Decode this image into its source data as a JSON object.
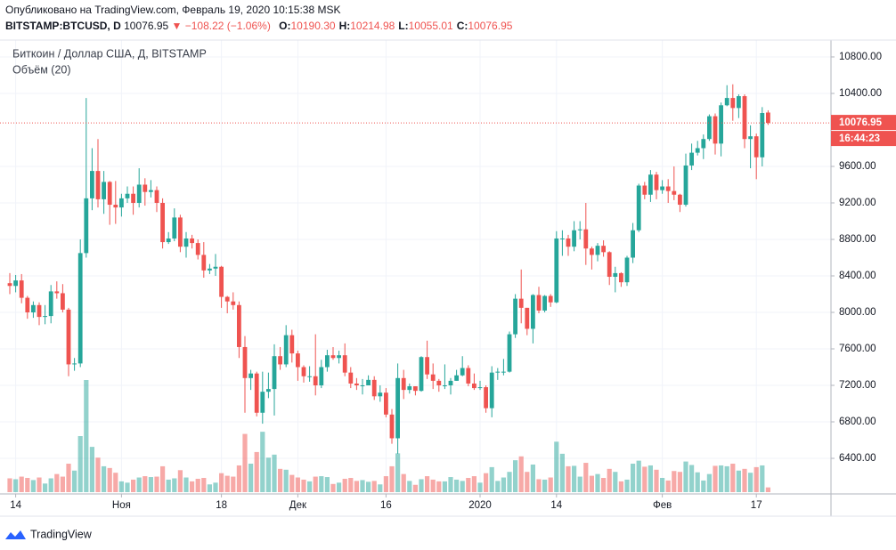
{
  "chart_data": {
    "type": "candlestick",
    "published": "Опубликовано на TradingView.com, Февраль 19, 2020 10:15:38 MSK",
    "symbol": "BITSTAMP:BTCUSD, D",
    "change": "▼ −108.22 (−1.06%)",
    "ohlc": [
      {
        "key": "O:",
        "text": "10190.30"
      },
      {
        "key": "H:",
        "text": "10214.98"
      },
      {
        "key": "L:",
        "text": "10055.01"
      },
      {
        "key": "C:",
        "text": "10076.95"
      }
    ],
    "title": "Биткоин / Доллар США, Д, BITSTAMP",
    "volume_label": "Объём (20)",
    "countdown": "16:44:23",
    "brand": "TradingView",
    "up_color": "#26a69a",
    "down_color": "#ef5350",
    "ylim": [
      6010,
      10985
    ],
    "yticks": [
      {
        "value": 6400,
        "label": "6400.00"
      },
      {
        "value": 6800,
        "label": "6800.00"
      },
      {
        "value": 7200,
        "label": "7200.00"
      },
      {
        "value": 7600,
        "label": "7600.00"
      },
      {
        "value": 8000,
        "label": "8000.00"
      },
      {
        "value": 8400,
        "label": "8400.00"
      },
      {
        "value": 8800,
        "label": "8800.00"
      },
      {
        "value": 9200,
        "label": "9200.00"
      },
      {
        "value": 9600,
        "label": "9600.00"
      },
      {
        "value": 10400,
        "label": "10400.00"
      },
      {
        "value": 10800,
        "label": "10800.00"
      }
    ],
    "xticks": [
      {
        "value": "2019-10-14",
        "label": "14"
      },
      {
        "value": "2019-11-01",
        "label": "Ноя"
      },
      {
        "value": "2019-11-18",
        "label": "18"
      },
      {
        "value": "2019-12-01",
        "label": "Дек"
      },
      {
        "value": "2019-12-16",
        "label": "16"
      },
      {
        "value": "2020-01-01",
        "label": "2020"
      },
      {
        "value": "2020-01-14",
        "label": "14"
      },
      {
        "value": "2020-02-01",
        "label": "Фев"
      },
      {
        "value": "2020-02-17",
        "label": "17"
      }
    ],
    "grid": true,
    "x": [
      "2019-10-13",
      "2019-10-14",
      "2019-10-15",
      "2019-10-16",
      "2019-10-17",
      "2019-10-18",
      "2019-10-19",
      "2019-10-20",
      "2019-10-21",
      "2019-10-22",
      "2019-10-23",
      "2019-10-24",
      "2019-10-25",
      "2019-10-26",
      "2019-10-27",
      "2019-10-28",
      "2019-10-29",
      "2019-10-30",
      "2019-10-31",
      "2019-11-01",
      "2019-11-02",
      "2019-11-03",
      "2019-11-04",
      "2019-11-05",
      "2019-11-06",
      "2019-11-07",
      "2019-11-08",
      "2019-11-09",
      "2019-11-10",
      "2019-11-11",
      "2019-11-12",
      "2019-11-13",
      "2019-11-14",
      "2019-11-15",
      "2019-11-16",
      "2019-11-17",
      "2019-11-18",
      "2019-11-19",
      "2019-11-20",
      "2019-11-21",
      "2019-11-22",
      "2019-11-23",
      "2019-11-24",
      "2019-11-25",
      "2019-11-26",
      "2019-11-27",
      "2019-11-28",
      "2019-11-29",
      "2019-11-30",
      "2019-12-01",
      "2019-12-02",
      "2019-12-03",
      "2019-12-04",
      "2019-12-05",
      "2019-12-06",
      "2019-12-07",
      "2019-12-08",
      "2019-12-09",
      "2019-12-10",
      "2019-12-11",
      "2019-12-12",
      "2019-12-13",
      "2019-12-14",
      "2019-12-15",
      "2019-12-16",
      "2019-12-17",
      "2019-12-18",
      "2019-12-19",
      "2019-12-20",
      "2019-12-21",
      "2019-12-22",
      "2019-12-23",
      "2019-12-24",
      "2019-12-25",
      "2019-12-26",
      "2019-12-27",
      "2019-12-28",
      "2019-12-29",
      "2019-12-30",
      "2019-12-31",
      "2020-01-01",
      "2020-01-02",
      "2020-01-03",
      "2020-01-04",
      "2020-01-05",
      "2020-01-06",
      "2020-01-07",
      "2020-01-08",
      "2020-01-09",
      "2020-01-10",
      "2020-01-11",
      "2020-01-12",
      "2020-01-13",
      "2020-01-14",
      "2020-01-15",
      "2020-01-16",
      "2020-01-17",
      "2020-01-18",
      "2020-01-19",
      "2020-01-20",
      "2020-01-21",
      "2020-01-22",
      "2020-01-23",
      "2020-01-24",
      "2020-01-25",
      "2020-01-26",
      "2020-01-27",
      "2020-01-28",
      "2020-01-29",
      "2020-01-30",
      "2020-01-31",
      "2020-02-01",
      "2020-02-02",
      "2020-02-03",
      "2020-02-04",
      "2020-02-05",
      "2020-02-06",
      "2020-02-07",
      "2020-02-08",
      "2020-02-09",
      "2020-02-10",
      "2020-02-11",
      "2020-02-12",
      "2020-02-13",
      "2020-02-14",
      "2020-02-15",
      "2020-02-16",
      "2020-02-17",
      "2020-02-18",
      "2020-02-19"
    ],
    "open": [
      8320,
      8290,
      8350,
      8160,
      8000,
      8080,
      7950,
      7960,
      8230,
      8210,
      8030,
      7430,
      7440,
      8650,
      9250,
      9550,
      9240,
      9430,
      9180,
      9150,
      9250,
      9300,
      9200,
      9400,
      9320,
      9340,
      9200,
      8770,
      8810,
      9040,
      8720,
      8810,
      8760,
      8630,
      8460,
      8480,
      8500,
      8170,
      8120,
      8080,
      7620,
      7280,
      7330,
      6900,
      7130,
      7160,
      7520,
      7430,
      7750,
      7550,
      7400,
      7300,
      7300,
      7200,
      7400,
      7530,
      7500,
      7530,
      7340,
      7220,
      7200,
      7200,
      7260,
      7080,
      7120,
      6880,
      6620,
      7280,
      7150,
      7190,
      7140,
      7510,
      7320,
      7250,
      7200,
      7200,
      7250,
      7310,
      7390,
      7220,
      7170,
      7180,
      6950,
      7340,
      7350,
      7350,
      7760,
      8150,
      8050,
      7820,
      8190,
      8020,
      8180,
      8110,
      8810,
      8810,
      8720,
      8900,
      8910,
      8700,
      8630,
      8730,
      8660,
      8390,
      8430,
      8330,
      8600,
      8900,
      9390,
      9290,
      9510,
      9340,
      9380,
      9330,
      9290,
      9180,
      9610,
      9750,
      9800,
      9900,
      10150,
      9850,
      10270,
      10350,
      10240,
      10370,
      9900,
      9930,
      9700,
      10190.3
    ],
    "high": [
      8430,
      8410,
      8420,
      8180,
      8120,
      8110,
      8080,
      8300,
      8340,
      8310,
      8050,
      7500,
      8800,
      10350,
      9800,
      9900,
      9550,
      9440,
      9440,
      9300,
      9380,
      9380,
      9580,
      9470,
      9450,
      9380,
      9250,
      8880,
      9140,
      9070,
      8880,
      8850,
      8800,
      8770,
      8530,
      8640,
      8510,
      8180,
      8220,
      8120,
      7740,
      7370,
      7350,
      7350,
      7340,
      7650,
      7620,
      7860,
      7810,
      7580,
      7420,
      7410,
      7760,
      7480,
      7590,
      7620,
      7580,
      7660,
      7400,
      7280,
      7270,
      7310,
      7300,
      7200,
      7170,
      6940,
      7440,
      7370,
      7220,
      7190,
      7520,
      7690,
      7440,
      7270,
      7430,
      7280,
      7370,
      7520,
      7420,
      7330,
      7250,
      7200,
      7410,
      7390,
      7490,
      7790,
      8200,
      8470,
      8050,
      8200,
      8280,
      8190,
      8200,
      8890,
      8900,
      8850,
      9000,
      9000,
      9200,
      8720,
      8760,
      8790,
      8670,
      8500,
      8440,
      8620,
      8980,
      9410,
      9430,
      9560,
      9540,
      9450,
      9460,
      9600,
      9300,
      9740,
      9850,
      9880,
      9950,
      10170,
      10180,
      10300,
      10490,
      10500,
      10390,
      10390,
      10050,
      9960,
      10250,
      10214.98
    ],
    "low": [
      8200,
      8220,
      8100,
      7930,
      7940,
      7860,
      7870,
      7880,
      8150,
      8000,
      7300,
      7360,
      7400,
      8600,
      9120,
      9150,
      9080,
      8960,
      8970,
      9050,
      9200,
      9070,
      9150,
      9170,
      9260,
      9100,
      8700,
      8750,
      8780,
      8660,
      8600,
      8700,
      8580,
      8380,
      8420,
      8400,
      8050,
      7990,
      8030,
      7500,
      6900,
      7150,
      6860,
      6780,
      7060,
      6870,
      7370,
      7400,
      7450,
      7250,
      7230,
      7240,
      7090,
      7170,
      7350,
      7480,
      7440,
      7300,
      7170,
      7150,
      7100,
      7200,
      7040,
      7020,
      6850,
      6560,
      6450,
      7050,
      7110,
      7090,
      7130,
      7270,
      7160,
      7130,
      7160,
      7100,
      7250,
      7300,
      7190,
      7150,
      7150,
      6900,
      6850,
      7260,
      7310,
      7340,
      7720,
      7880,
      7750,
      7660,
      7990,
      8000,
      8060,
      8100,
      8620,
      8620,
      8670,
      8800,
      8520,
      8470,
      8560,
      8610,
      8300,
      8220,
      8280,
      8290,
      8540,
      8880,
      9240,
      9210,
      9240,
      9300,
      9200,
      9230,
      9100,
      9160,
      9560,
      9720,
      9680,
      9880,
      9730,
      9710,
      10260,
      10100,
      10130,
      9800,
      9580,
      9460,
      9600,
      10055.01
    ],
    "close": [
      8290,
      8350,
      8160,
      8000,
      8080,
      7950,
      7960,
      8230,
      8210,
      8030,
      7430,
      7440,
      8650,
      9250,
      9550,
      9240,
      9430,
      9180,
      9150,
      9250,
      9300,
      9200,
      9400,
      9320,
      9340,
      9200,
      8770,
      8810,
      9040,
      8720,
      8810,
      8760,
      8630,
      8460,
      8480,
      8500,
      8170,
      8120,
      8080,
      7620,
      7280,
      7330,
      6900,
      7130,
      7160,
      7520,
      7430,
      7750,
      7550,
      7400,
      7300,
      7300,
      7200,
      7400,
      7530,
      7500,
      7530,
      7340,
      7220,
      7200,
      7200,
      7260,
      7080,
      7120,
      6880,
      6620,
      7280,
      7150,
      7190,
      7140,
      7510,
      7320,
      7250,
      7200,
      7200,
      7250,
      7310,
      7390,
      7220,
      7170,
      7180,
      6950,
      7340,
      7350,
      7350,
      7760,
      8150,
      8050,
      7820,
      8190,
      8020,
      8180,
      8110,
      8810,
      8810,
      8720,
      8900,
      8910,
      8700,
      8630,
      8730,
      8660,
      8390,
      8430,
      8330,
      8600,
      8900,
      9390,
      9290,
      9510,
      9340,
      9380,
      9330,
      9290,
      9180,
      9610,
      9750,
      9800,
      9900,
      10150,
      9850,
      10270,
      10350,
      10240,
      10370,
      9900,
      9930,
      9700,
      10185,
      10076.95
    ],
    "volume": [
      3200,
      3000,
      3600,
      3300,
      2800,
      3400,
      2000,
      3200,
      4200,
      3600,
      6600,
      5000,
      13000,
      26000,
      10500,
      8000,
      6000,
      5600,
      4500,
      2500,
      2200,
      2900,
      3400,
      3700,
      3500,
      3600,
      6000,
      2900,
      3200,
      5100,
      3400,
      2500,
      3100,
      3300,
      1800,
      2200,
      4400,
      3800,
      3600,
      6200,
      13500,
      6600,
      9300,
      14000,
      8000,
      8700,
      5400,
      5200,
      4000,
      3400,
      2900,
      2500,
      3600,
      3700,
      3500,
      1900,
      2200,
      3100,
      3300,
      2600,
      2800,
      2400,
      2600,
      1800,
      3700,
      6000,
      9000,
      4200,
      2600,
      1700,
      3000,
      3700,
      2900,
      2500,
      2500,
      3500,
      2900,
      2600,
      3300,
      3700,
      2200,
      4400,
      5800,
      2600,
      3400,
      4700,
      7400,
      8300,
      4700,
      6400,
      3000,
      2900,
      3400,
      11700,
      8900,
      6000,
      6100,
      3600,
      6800,
      3800,
      4200,
      3300,
      5400,
      4700,
      2500,
      2900,
      6600,
      7300,
      5900,
      6200,
      5200,
      3300,
      2700,
      4900,
      4700,
      7100,
      6300,
      4600,
      2700,
      4200,
      6100,
      6200,
      6000,
      6600,
      5000,
      5400,
      4500,
      5800,
      6200,
      1100
    ]
  }
}
